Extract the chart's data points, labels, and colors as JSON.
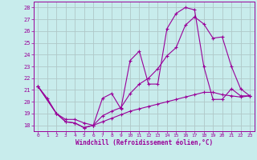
{
  "xlabel": "Windchill (Refroidissement éolien,°C)",
  "ylabel": "",
  "xlim": [
    -0.5,
    23.5
  ],
  "ylim": [
    17.5,
    28.5
  ],
  "yticks": [
    18,
    19,
    20,
    21,
    22,
    23,
    24,
    25,
    26,
    27,
    28
  ],
  "xticks": [
    0,
    1,
    2,
    3,
    4,
    5,
    6,
    7,
    8,
    9,
    10,
    11,
    12,
    13,
    14,
    15,
    16,
    17,
    18,
    19,
    20,
    21,
    22,
    23
  ],
  "background_color": "#c8ecec",
  "grid_color": "#b0c8c8",
  "line_color": "#990099",
  "line1_x": [
    0,
    1,
    2,
    3,
    4,
    5,
    6,
    7,
    8,
    9,
    10,
    11,
    12,
    13,
    14,
    15,
    16,
    17,
    18,
    19,
    20,
    21,
    22,
    23
  ],
  "line1_y": [
    21.3,
    20.3,
    19.0,
    18.3,
    18.2,
    17.8,
    18.0,
    20.3,
    20.7,
    19.4,
    23.5,
    24.3,
    21.5,
    21.5,
    26.2,
    27.5,
    28.0,
    27.8,
    23.0,
    20.2,
    20.2,
    21.1,
    20.5,
    20.5
  ],
  "line2_x": [
    0,
    2,
    3,
    4,
    5,
    6,
    7,
    8,
    9,
    10,
    11,
    12,
    13,
    14,
    15,
    16,
    17,
    18,
    19,
    20,
    21,
    22,
    23
  ],
  "line2_y": [
    21.3,
    19.0,
    18.3,
    18.2,
    17.8,
    18.0,
    18.8,
    19.2,
    19.5,
    20.7,
    21.5,
    22.0,
    22.8,
    23.9,
    24.6,
    26.5,
    27.2,
    26.6,
    25.4,
    25.5,
    23.0,
    21.1,
    20.5
  ],
  "line3_x": [
    0,
    2,
    3,
    4,
    5,
    6,
    7,
    8,
    9,
    10,
    11,
    12,
    13,
    14,
    15,
    16,
    17,
    18,
    19,
    20,
    21,
    22,
    23
  ],
  "line3_y": [
    21.3,
    19.0,
    18.5,
    18.5,
    18.2,
    18.0,
    18.3,
    18.6,
    18.9,
    19.2,
    19.4,
    19.6,
    19.8,
    20.0,
    20.2,
    20.4,
    20.6,
    20.8,
    20.8,
    20.6,
    20.5,
    20.4,
    20.5
  ]
}
